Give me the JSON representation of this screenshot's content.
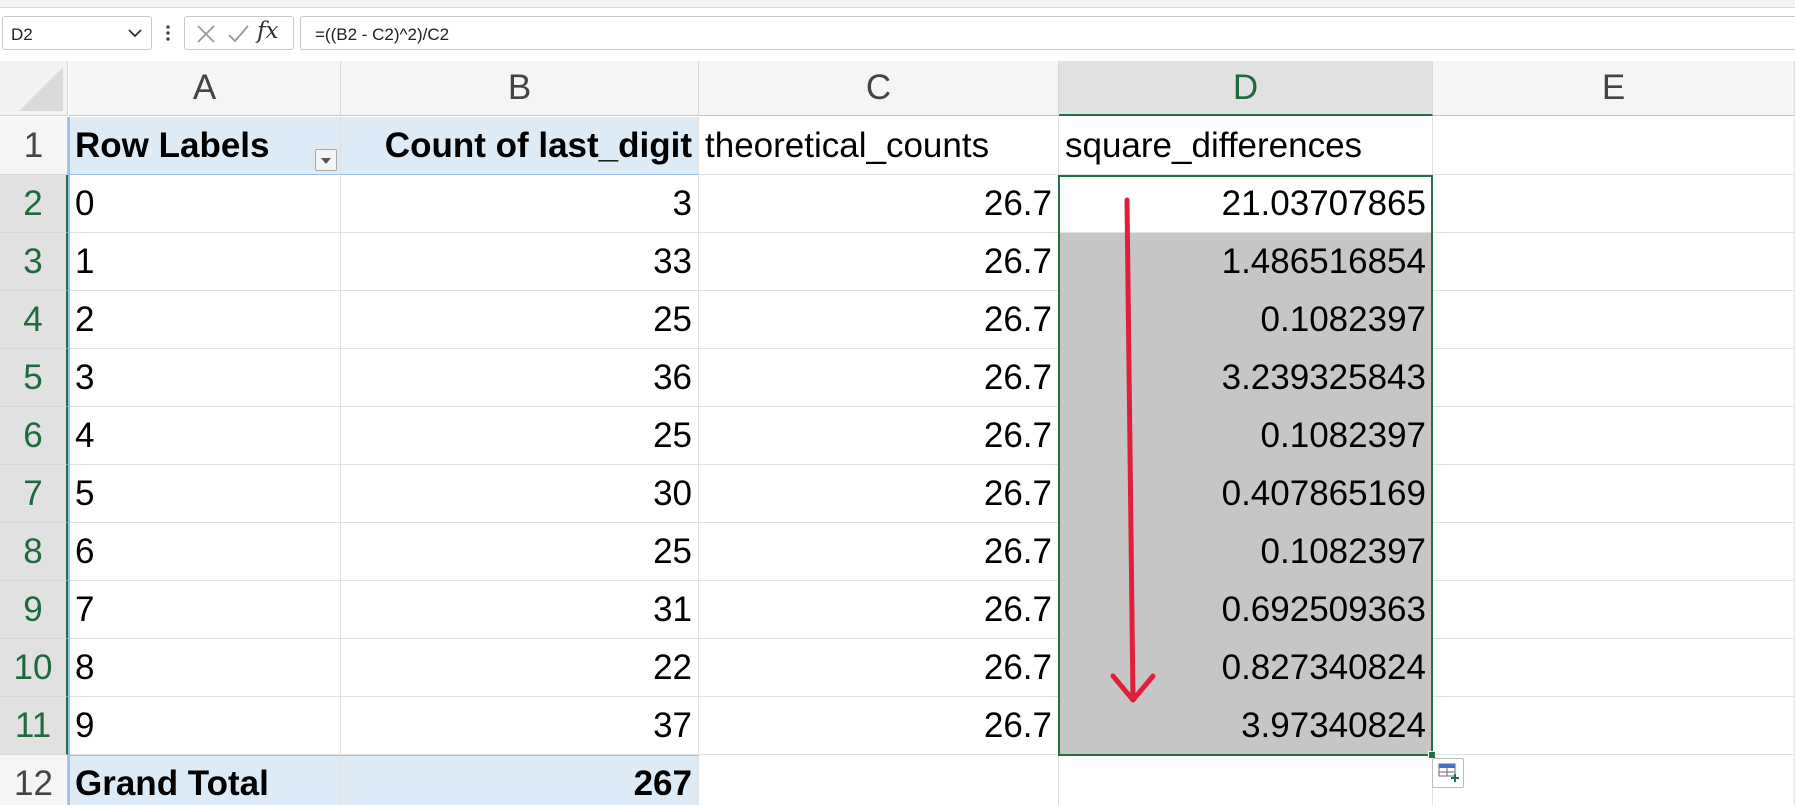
{
  "formula_bar": {
    "name_box": "D2",
    "fx_label": "fx",
    "formula": "=((B2 - C2)^2)/C2"
  },
  "columns": [
    "A",
    "B",
    "C",
    "D",
    "E"
  ],
  "rows": [
    "1",
    "2",
    "3",
    "4",
    "5",
    "6",
    "7",
    "8",
    "9",
    "10",
    "11",
    "12"
  ],
  "selected_column": "D",
  "selected_rows": [
    "2",
    "3",
    "4",
    "5",
    "6",
    "7",
    "8",
    "9",
    "10",
    "11"
  ],
  "header_row": {
    "a": "Row Labels",
    "b": "Count of last_digit",
    "c": "theoretical_counts",
    "d": "square_differences"
  },
  "data_rows": [
    {
      "a": "0",
      "b": "3",
      "c": "26.7",
      "d": "21.03707865"
    },
    {
      "a": "1",
      "b": "33",
      "c": "26.7",
      "d": "1.486516854"
    },
    {
      "a": "2",
      "b": "25",
      "c": "26.7",
      "d": "0.1082397"
    },
    {
      "a": "3",
      "b": "36",
      "c": "26.7",
      "d": "3.239325843"
    },
    {
      "a": "4",
      "b": "25",
      "c": "26.7",
      "d": "0.1082397"
    },
    {
      "a": "5",
      "b": "30",
      "c": "26.7",
      "d": "0.407865169"
    },
    {
      "a": "6",
      "b": "25",
      "c": "26.7",
      "d": "0.1082397"
    },
    {
      "a": "7",
      "b": "31",
      "c": "26.7",
      "d": "0.692509363"
    },
    {
      "a": "8",
      "b": "22",
      "c": "26.7",
      "d": "0.827340824"
    },
    {
      "a": "9",
      "b": "37",
      "c": "26.7",
      "d": "3.97340824"
    }
  ],
  "total_row": {
    "a": "Grand Total",
    "b": "267"
  },
  "colors": {
    "selection_green": "#217346",
    "pivot_blue": "#ddebf7",
    "selected_fill": "#c6c6c6",
    "annotation_red": "#e0203a"
  },
  "icons": {
    "name_box_dropdown": "chevron-down-icon",
    "formula_cancel": "x-icon",
    "formula_enter": "check-icon",
    "filter": "filter-dropdown-icon",
    "quick_analysis": "quick-analysis-icon",
    "annotation": "red-down-arrow"
  }
}
